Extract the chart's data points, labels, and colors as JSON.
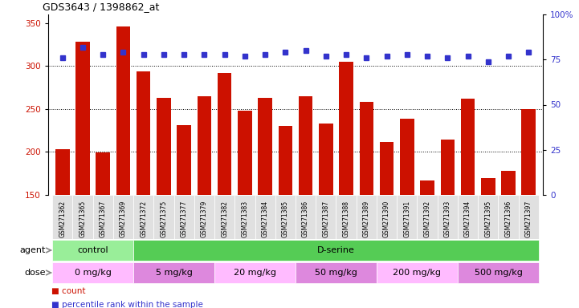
{
  "title": "GDS3643 / 1398862_at",
  "samples": [
    "GSM271362",
    "GSM271365",
    "GSM271367",
    "GSM271369",
    "GSM271372",
    "GSM271375",
    "GSM271377",
    "GSM271379",
    "GSM271382",
    "GSM271383",
    "GSM271384",
    "GSM271385",
    "GSM271386",
    "GSM271387",
    "GSM271388",
    "GSM271389",
    "GSM271390",
    "GSM271391",
    "GSM271392",
    "GSM271393",
    "GSM271394",
    "GSM271395",
    "GSM271396",
    "GSM271397"
  ],
  "counts": [
    203,
    328,
    199,
    346,
    294,
    263,
    231,
    265,
    292,
    248,
    263,
    230,
    265,
    233,
    305,
    258,
    212,
    239,
    167,
    214,
    262,
    170,
    178,
    250
  ],
  "percentiles": [
    76,
    82,
    78,
    79,
    78,
    78,
    78,
    78,
    78,
    77,
    78,
    79,
    80,
    77,
    78,
    76,
    77,
    78,
    77,
    76,
    77,
    74,
    77,
    79
  ],
  "bar_color": "#cc1100",
  "dot_color": "#3333cc",
  "ylim_left": [
    150,
    360
  ],
  "ylim_right": [
    0,
    100
  ],
  "yticks_left": [
    150,
    200,
    250,
    300,
    350
  ],
  "yticks_right": [
    0,
    25,
    50,
    75,
    100
  ],
  "agent_groups": [
    {
      "label": "control",
      "color": "#99ee99",
      "start": 0,
      "end": 4
    },
    {
      "label": "D-serine",
      "color": "#55cc55",
      "start": 4,
      "end": 24
    }
  ],
  "dose_groups": [
    {
      "label": "0 mg/kg",
      "color": "#ffbbff",
      "start": 0,
      "end": 4
    },
    {
      "label": "5 mg/kg",
      "color": "#dd88dd",
      "start": 4,
      "end": 8
    },
    {
      "label": "20 mg/kg",
      "color": "#ffbbff",
      "start": 8,
      "end": 12
    },
    {
      "label": "50 mg/kg",
      "color": "#dd88dd",
      "start": 12,
      "end": 16
    },
    {
      "label": "200 mg/kg",
      "color": "#ffbbff",
      "start": 16,
      "end": 20
    },
    {
      "label": "500 mg/kg",
      "color": "#dd88dd",
      "start": 20,
      "end": 24
    }
  ],
  "legend_count_color": "#cc1100",
  "legend_dot_color": "#3333cc",
  "xtick_bg": "#e0e0e0"
}
